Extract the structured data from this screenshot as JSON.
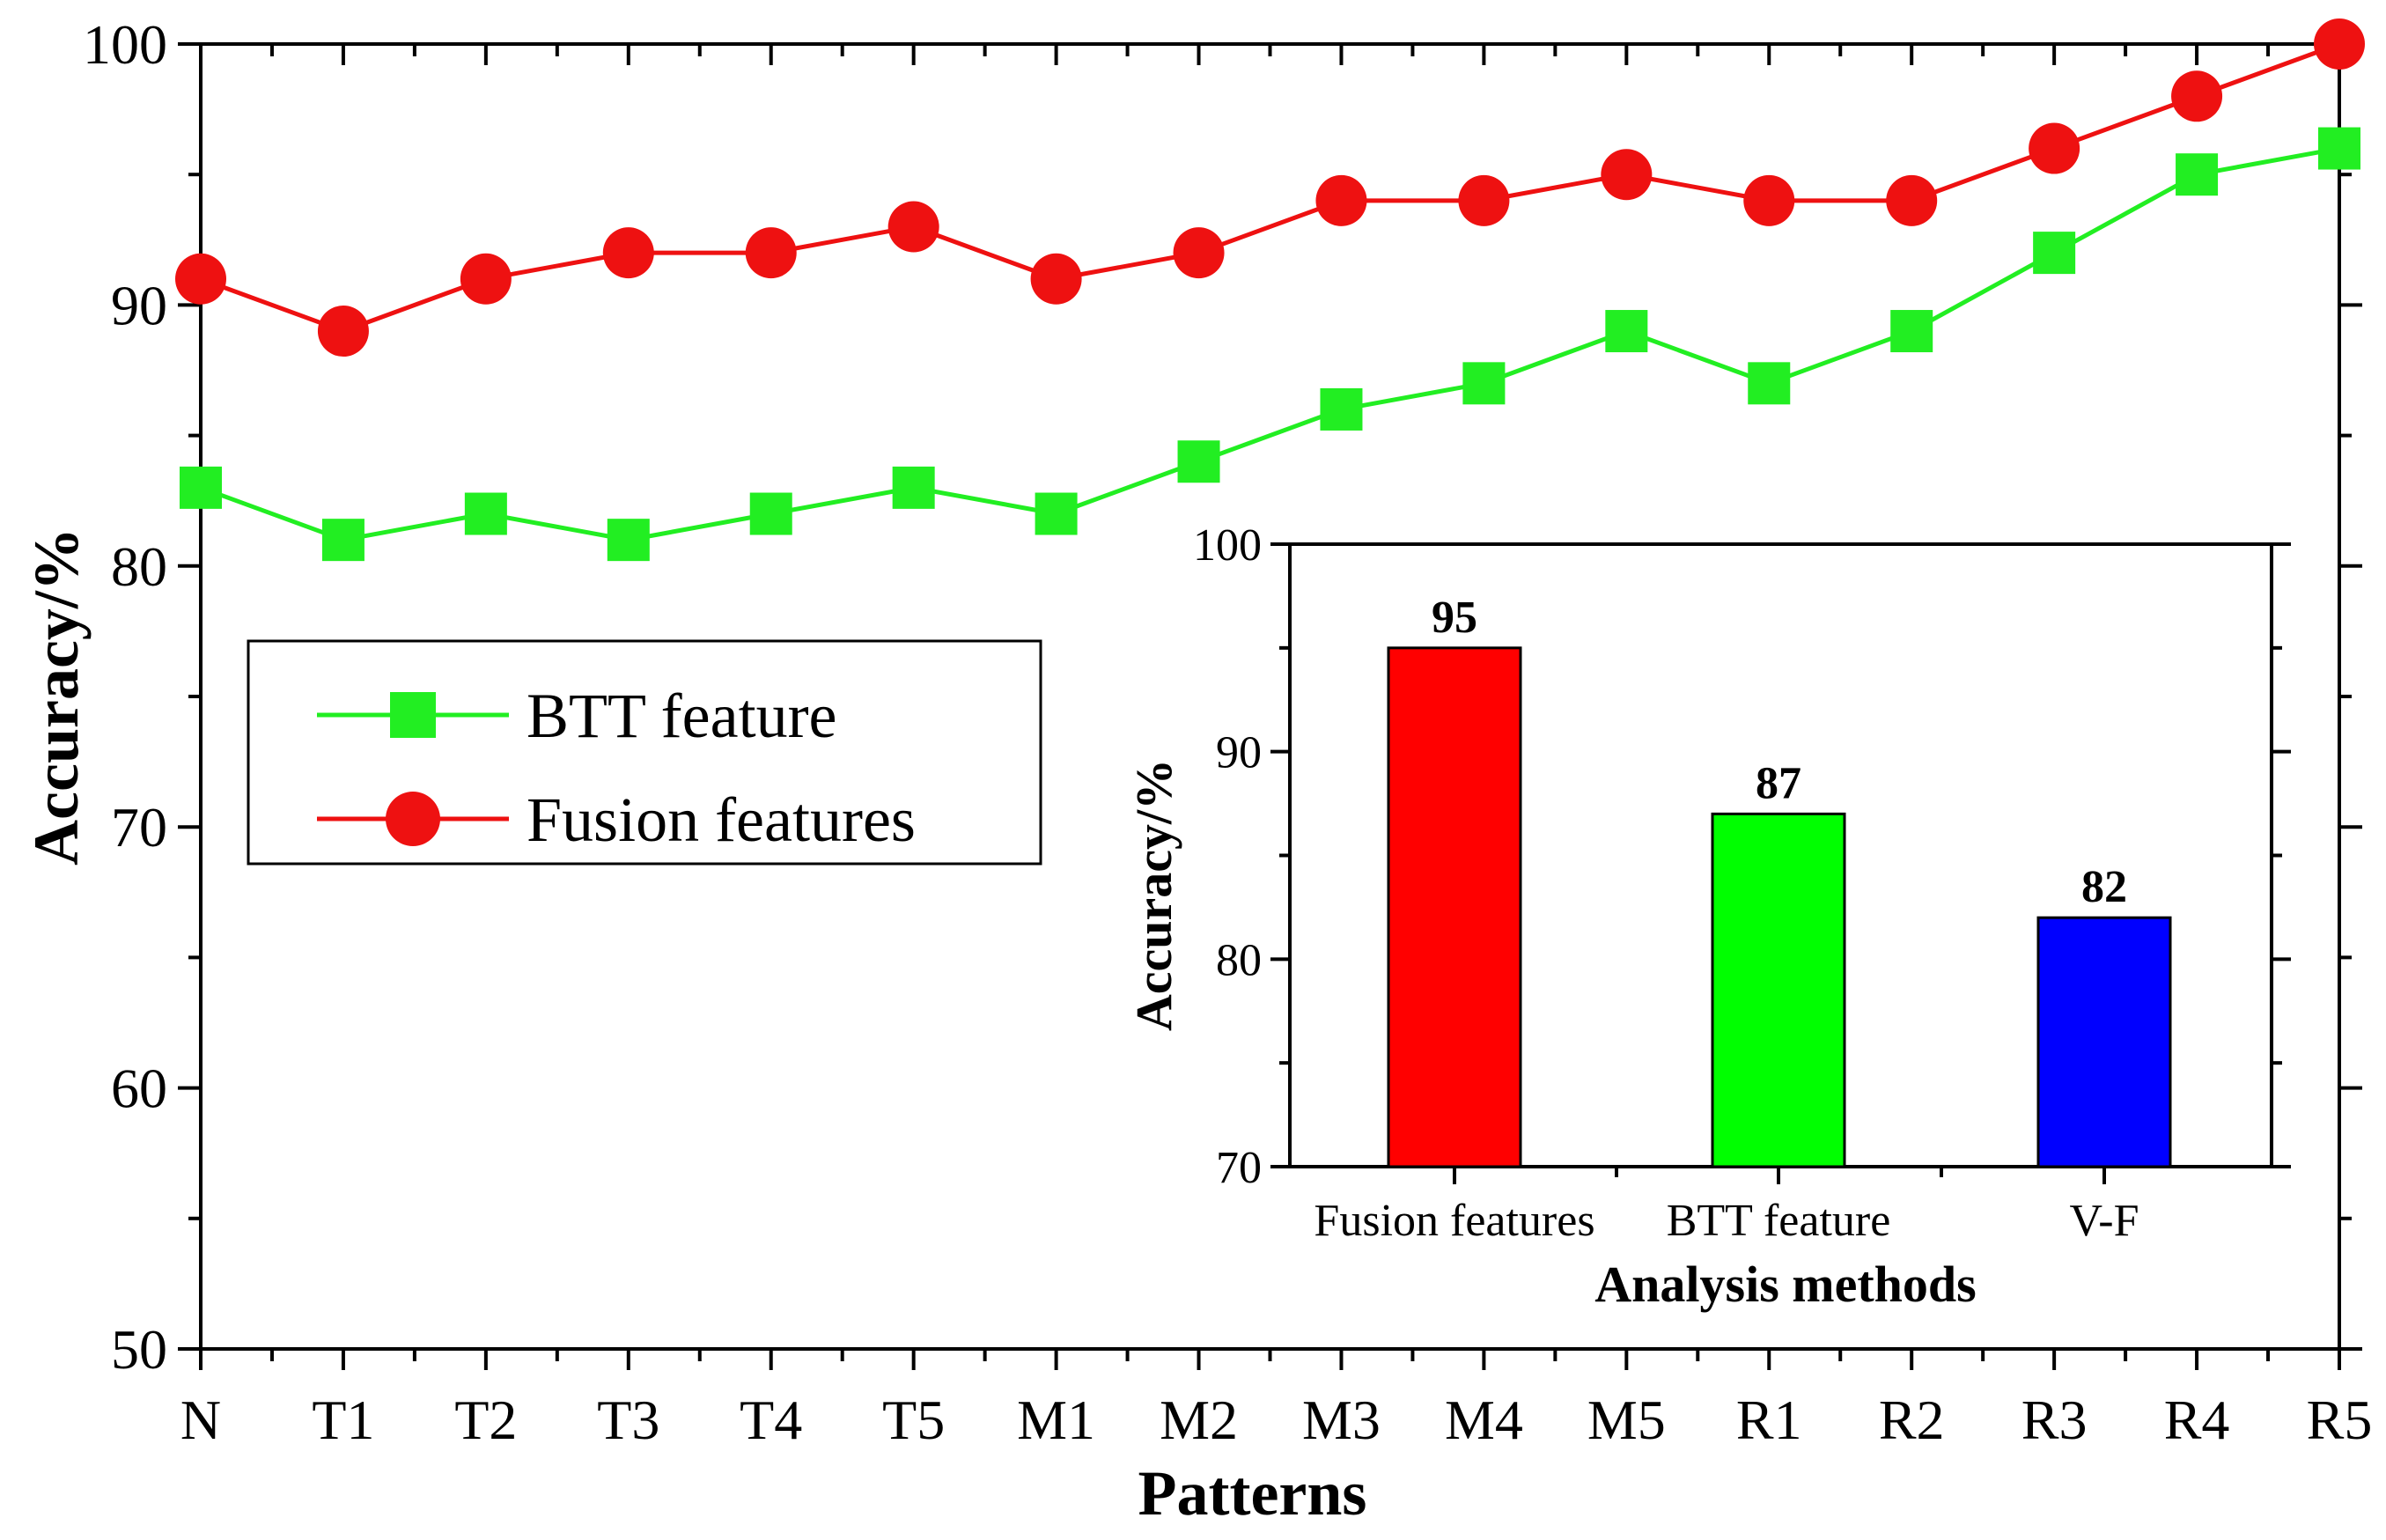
{
  "chart_data": [
    {
      "type": "line",
      "title": "",
      "xlabel": "Patterns",
      "ylabel": "Accuracy/%",
      "ylim": [
        50,
        100
      ],
      "yticks": [
        50,
        60,
        70,
        80,
        90,
        100
      ],
      "categories": [
        "N",
        "T1",
        "T2",
        "T3",
        "T4",
        "T5",
        "M1",
        "M2",
        "M3",
        "M4",
        "M5",
        "R1",
        "R2",
        "R3",
        "R4",
        "R5"
      ],
      "legend_position": "middle-left",
      "series": [
        {
          "name": "BTT feature",
          "color": "#22ee22",
          "marker": "square",
          "values": [
            83,
            81,
            82,
            81,
            82,
            83,
            82,
            84,
            86,
            87,
            89,
            87,
            89,
            92,
            95,
            96
          ]
        },
        {
          "name": "Fusion features",
          "color": "#ee1111",
          "marker": "circle",
          "values": [
            91,
            89,
            91,
            92,
            92,
            93,
            91,
            92,
            94,
            94,
            95,
            94,
            94,
            96,
            98,
            100
          ]
        }
      ]
    },
    {
      "type": "bar",
      "title": "",
      "xlabel": "Analysis methods",
      "ylabel": "Accuracy/%",
      "ylim": [
        70,
        100
      ],
      "yticks": [
        70,
        80,
        90,
        100
      ],
      "categories": [
        "Fusion features",
        "BTT feature",
        "V-F"
      ],
      "values": [
        95,
        87,
        82
      ],
      "data_labels": [
        "95",
        "87",
        "82"
      ],
      "colors": [
        "#ff0000",
        "#00ff00",
        "#0000ff"
      ]
    }
  ]
}
